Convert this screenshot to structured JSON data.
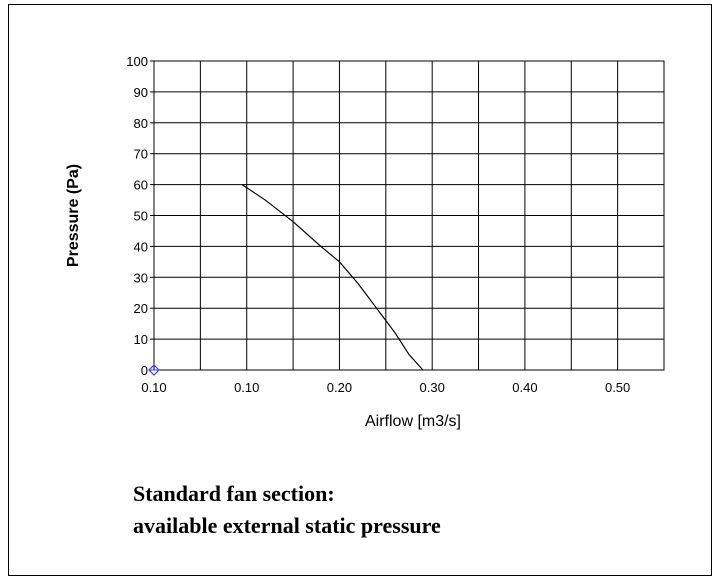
{
  "chart_data": {
    "type": "line",
    "xlabel": "Airflow [m3/s]",
    "ylabel": "Pressure (Pa)",
    "x_tick_labels": [
      "0.10",
      "0.10",
      "0.20",
      "0.30",
      "0.40",
      "0.50"
    ],
    "y_tick_labels": [
      "0",
      "10",
      "20",
      "30",
      "40",
      "50",
      "60",
      "70",
      "80",
      "90",
      "100"
    ],
    "xlim": [
      0.0,
      0.55
    ],
    "ylim": [
      0,
      100
    ],
    "grid": true,
    "series": [
      {
        "x": [
          0.095,
          0.12,
          0.15,
          0.18,
          0.2,
          0.22,
          0.24,
          0.26,
          0.275,
          0.29
        ],
        "y": [
          60,
          55,
          48,
          40,
          35,
          28,
          20,
          12,
          5,
          0
        ]
      }
    ],
    "origin_marker": {
      "x": 0.0,
      "y": 0,
      "color": "#3a3aff"
    },
    "colors": {
      "line": "#000000",
      "grid": "#000000",
      "marker": "#3a3aff"
    }
  },
  "caption": {
    "line1": "Standard fan section:",
    "line2": "available external static pressure"
  }
}
